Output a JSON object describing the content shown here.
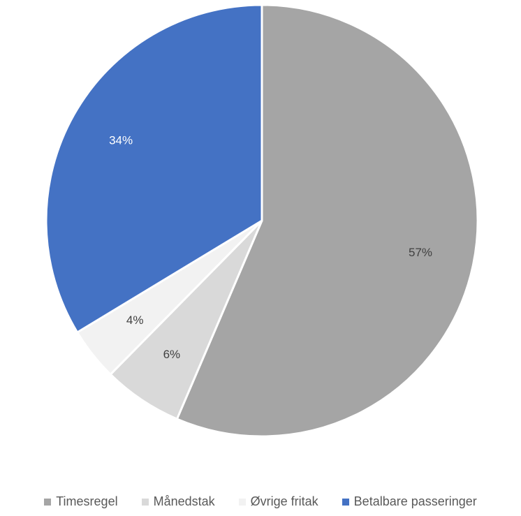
{
  "chart_data": {
    "type": "pie",
    "title": "",
    "series": [
      {
        "categories": [
          "Timesregel",
          "Månedstak",
          "Øvrige fritak",
          "Betalbare passeringer"
        ],
        "values": [
          57,
          6,
          4,
          34
        ],
        "labels": [
          "57%",
          "6%",
          "4%",
          "34%"
        ],
        "colors": [
          "#a5a5a5",
          "#d9d9d9",
          "#f2f2f2",
          "#4472c4"
        ],
        "label_colors": [
          "#404040",
          "#404040",
          "#404040",
          "#ffffff"
        ]
      }
    ],
    "start_angle_deg": 0,
    "direction": "clockwise",
    "legend_position": "bottom"
  },
  "legend": {
    "items": [
      {
        "label": "Timesregel",
        "color": "#a5a5a5"
      },
      {
        "label": "Månedstak",
        "color": "#d9d9d9"
      },
      {
        "label": "Øvrige fritak",
        "color": "#f2f2f2"
      },
      {
        "label": "Betalbare passeringer",
        "color": "#4472c4"
      }
    ]
  }
}
